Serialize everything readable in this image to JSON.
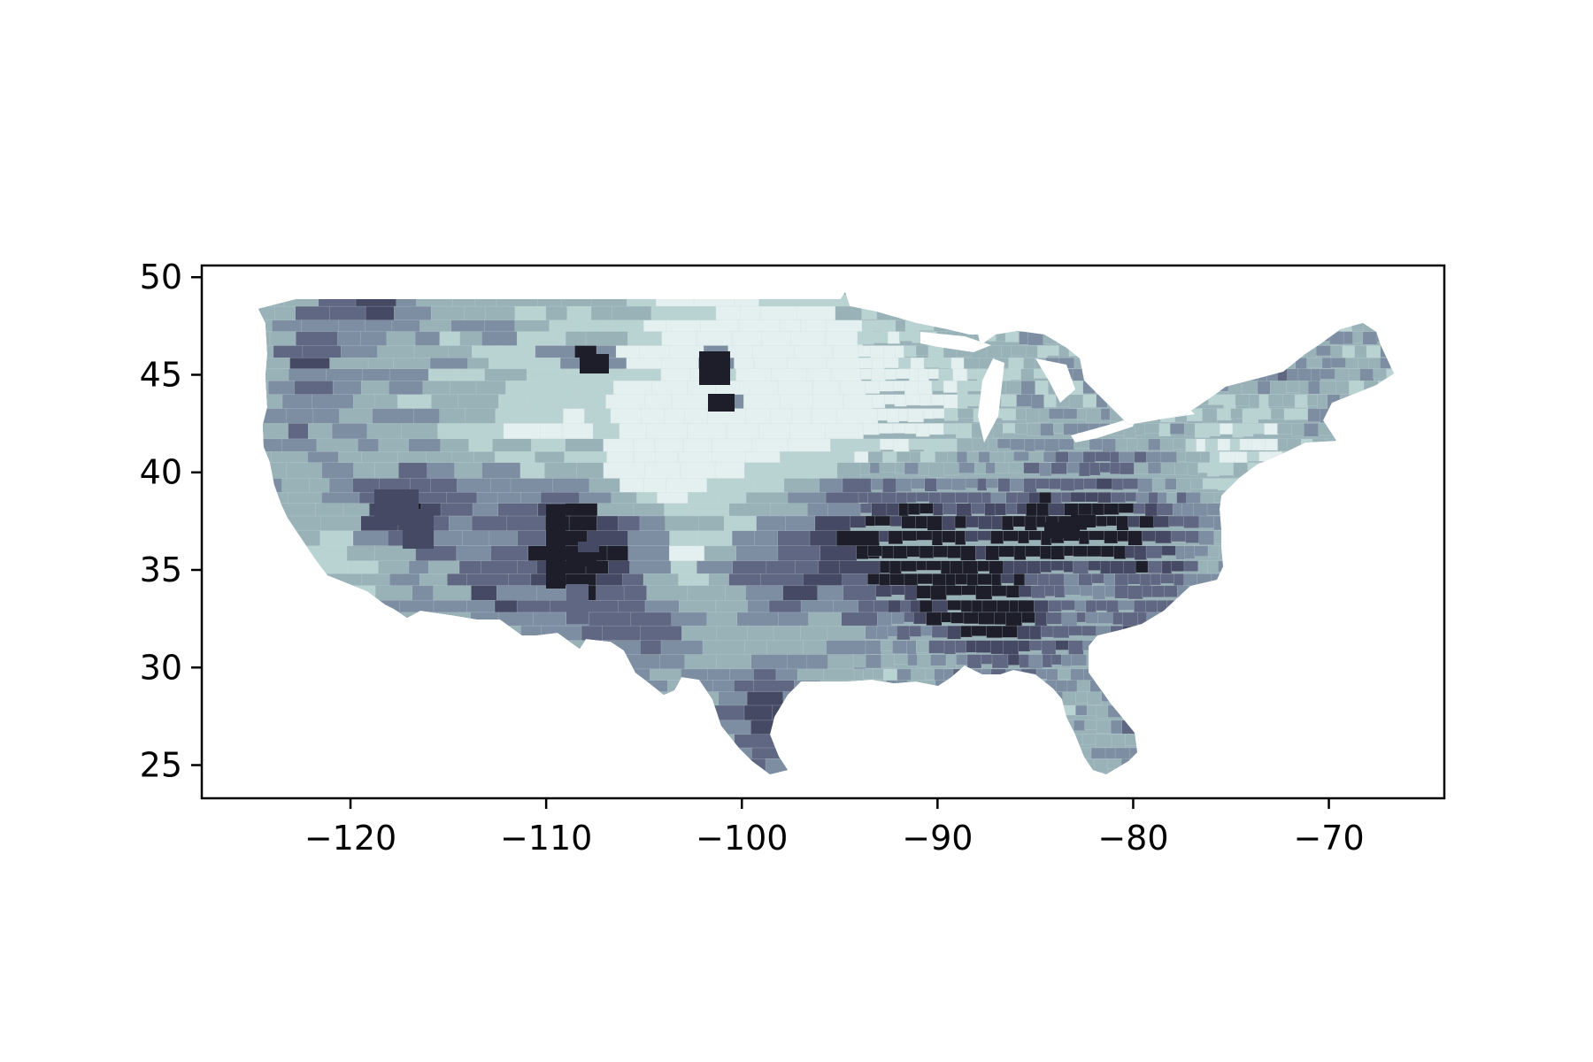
{
  "map": {
    "type": "choropleth",
    "region": "contiguous United States, county level",
    "colormap": "bone (light = low, dark = high)",
    "xlim": [
      -127.6,
      -64.1
    ],
    "ylim": [
      23.3,
      50.6
    ],
    "x_ticks": [
      -120,
      -110,
      -100,
      -90,
      -80,
      -70
    ],
    "y_ticks": [
      25,
      30,
      35,
      40,
      45,
      50
    ],
    "x_tick_labels": [
      "−120",
      "−110",
      "−100",
      "−90",
      "−80",
      "−70"
    ],
    "y_tick_labels": [
      "25",
      "30",
      "35",
      "40",
      "45",
      "50"
    ],
    "colors": {
      "frame": "#000000",
      "lowest": "#e4efef",
      "low": "#b9d2d2",
      "mid_low": "#98b2b8",
      "mid": "#7d8ea3",
      "mid_high": "#606782",
      "high": "#454963",
      "highest": "#1e1e2a"
    }
  }
}
